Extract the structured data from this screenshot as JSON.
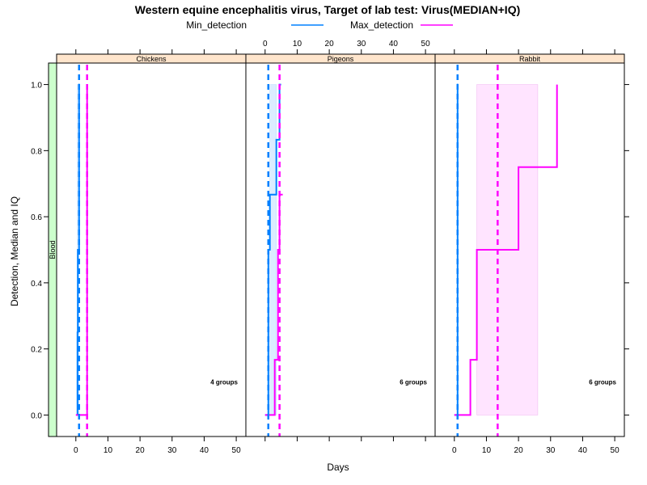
{
  "chart_data": {
    "type": "line",
    "title": "Western equine encephalitis virus, Target of lab test: Virus(MEDIAN+IQ)",
    "xlabel": "Days",
    "ylabel": "Detection, Median and IQ",
    "xlim": [
      -6,
      53
    ],
    "ylim": [
      -0.065,
      1.065
    ],
    "x_ticks": [
      0,
      10,
      20,
      30,
      40,
      50
    ],
    "y_ticks": [
      0.0,
      0.2,
      0.4,
      0.6,
      0.8,
      1.0
    ],
    "y_tick_labels": [
      "0.0",
      "0.2",
      "0.4",
      "0.6",
      "0.8",
      "1.0"
    ],
    "row_strip": "Blood",
    "legend": [
      {
        "name": "Min_detection",
        "color": "#0080ff"
      },
      {
        "name": "Max_detection",
        "color": "#ff00ff"
      }
    ],
    "panels": [
      {
        "name": "Chickens",
        "groups_label": "4 groups",
        "min_detection": {
          "x": [
            0.5,
            0.5,
            0.6,
            0.6,
            1,
            1,
            1.2
          ],
          "y": [
            0,
            0.25,
            0.25,
            0.5,
            0.5,
            1.0,
            1.0
          ]
        },
        "min_iqr": [
          0.5,
          1.0
        ],
        "max_detection": {
          "x": [
            0,
            3.5,
            3.5
          ],
          "y": [
            0,
            0,
            1.0
          ]
        },
        "max_iqr": null,
        "min_median": 1,
        "max_median": 3.5
      },
      {
        "name": "Pigeons",
        "groups_label": "6 groups",
        "min_detection": {
          "x": [
            0,
            1,
            1,
            1.5,
            1.5,
            3.5,
            3.5,
            4.5,
            4.5,
            5
          ],
          "y": [
            0,
            0,
            0.5,
            0.5,
            0.667,
            0.667,
            0.833,
            0.833,
            1.0,
            1.0
          ]
        },
        "min_iqr": [
          1.5,
          3.5
        ],
        "max_detection": {
          "x": [
            0,
            3,
            3,
            4,
            4,
            4.5,
            4.5,
            5,
            5,
            5.5
          ],
          "y": [
            0,
            0,
            0.167,
            0.167,
            0.5,
            0.5,
            0.667,
            0.667,
            0.667,
            0.667
          ]
        },
        "max_iqr": null,
        "min_median": 1,
        "max_median": 4.5
      },
      {
        "name": "Rabbit",
        "groups_label": "6 groups",
        "min_detection": {
          "x": [
            0,
            1,
            1,
            1.2
          ],
          "y": [
            0,
            0,
            1.0,
            1.0
          ]
        },
        "min_iqr": null,
        "max_detection": {
          "x": [
            0,
            5,
            5,
            7,
            7,
            20,
            20,
            32,
            32
          ],
          "y": [
            0,
            0,
            0.167,
            0.167,
            0.5,
            0.5,
            0.75,
            0.75,
            1.0
          ]
        },
        "max_iqr": [
          7,
          26
        ],
        "min_median": 1,
        "max_median": 13.5
      }
    ],
    "colors": {
      "min": "#0080ff",
      "max": "#ff00ff",
      "min_band": "#cce6ff",
      "max_band": "#ffd9ff",
      "strip_bg": "#ffe5cc",
      "row_strip_bg": "#ccffcc"
    }
  }
}
